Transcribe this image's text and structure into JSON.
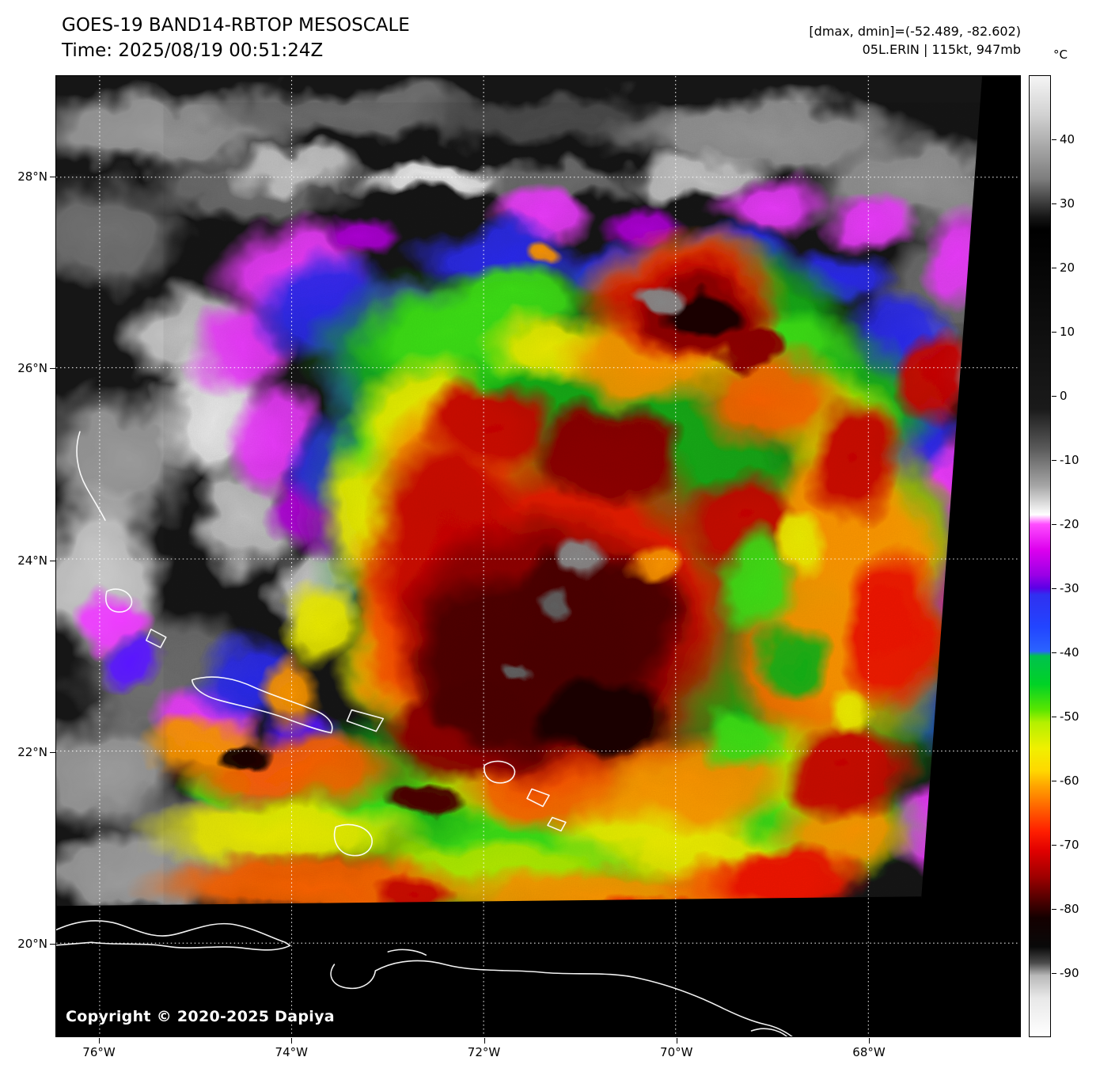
{
  "header": {
    "title": "GOES-19 BAND14-RBTOP MESOSCALE",
    "time_line": "Time: 2025/08/19 00:51:24Z",
    "range_info": "[dmax, dmin]=(-52.489, -82.602)",
    "storm_info": "05L.ERIN | 115kt, 947mb"
  },
  "colorbar": {
    "unit": "°C",
    "top_value": 50,
    "bottom_value": -100,
    "ticks": [
      40,
      30,
      20,
      10,
      0,
      -10,
      -20,
      -30,
      -40,
      -50,
      -60,
      -70,
      -80,
      -90
    ],
    "gradient_stops": [
      {
        "t": 50,
        "color": "#f5f5f5"
      },
      {
        "t": 44,
        "color": "#d2d2d2"
      },
      {
        "t": 34,
        "color": "#7e7e7e"
      },
      {
        "t": 28,
        "color": "#161616"
      },
      {
        "t": 26,
        "color": "#000000"
      },
      {
        "t": -2,
        "color": "#1a1a1a"
      },
      {
        "t": -8,
        "color": "#585858"
      },
      {
        "t": -14,
        "color": "#a6a6a6"
      },
      {
        "t": -18.5,
        "color": "#ffffff"
      },
      {
        "t": -20,
        "color": "#ff4dff"
      },
      {
        "t": -24,
        "color": "#dd00ee"
      },
      {
        "t": -28,
        "color": "#9900e6"
      },
      {
        "t": -30,
        "color": "#5a00e6"
      },
      {
        "t": -31,
        "color": "#3030f0"
      },
      {
        "t": -36,
        "color": "#2244ff"
      },
      {
        "t": -39.8,
        "color": "#2a63ff"
      },
      {
        "t": -40.6,
        "color": "#00c24d"
      },
      {
        "t": -45,
        "color": "#00d226"
      },
      {
        "t": -49,
        "color": "#5ae600"
      },
      {
        "t": -51,
        "color": "#b4f000"
      },
      {
        "t": -55,
        "color": "#f0f000"
      },
      {
        "t": -58.5,
        "color": "#ffd800"
      },
      {
        "t": -61,
        "color": "#ffa200"
      },
      {
        "t": -65,
        "color": "#ff5500"
      },
      {
        "t": -68,
        "color": "#ff1e00"
      },
      {
        "t": -71,
        "color": "#e00000"
      },
      {
        "t": -75,
        "color": "#a00000"
      },
      {
        "t": -79,
        "color": "#480000"
      },
      {
        "t": -81.5,
        "color": "#140000"
      },
      {
        "t": -86,
        "color": "#090909"
      },
      {
        "t": -88.5,
        "color": "#4a4a4a"
      },
      {
        "t": -90.5,
        "color": "#b9b9b9"
      },
      {
        "t": -94,
        "color": "#e8e8e8"
      },
      {
        "t": -100,
        "color": "#ffffff"
      }
    ]
  },
  "map": {
    "copyright": "Copyright © 2020-2025 Dapiya",
    "lat_labels": [
      {
        "label": "28°N",
        "lat": 28
      },
      {
        "label": "26°N",
        "lat": 26
      },
      {
        "label": "24°N",
        "lat": 24
      },
      {
        "label": "22°N",
        "lat": 22
      },
      {
        "label": "20°N",
        "lat": 20
      }
    ],
    "lon_labels": [
      {
        "label": "76°W",
        "lon": 76
      },
      {
        "label": "74°W",
        "lon": 74
      },
      {
        "label": "72°W",
        "lon": 72
      },
      {
        "label": "70°W",
        "lon": 70
      },
      {
        "label": "68°W",
        "lon": 68
      }
    ]
  }
}
